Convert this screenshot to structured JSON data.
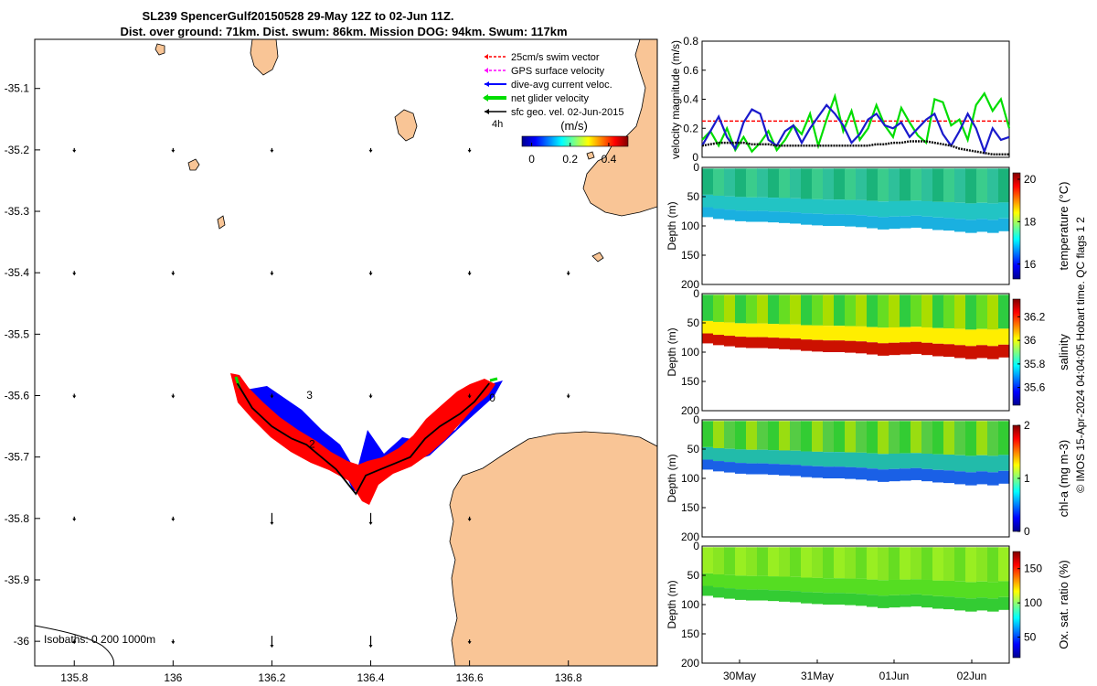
{
  "chart_data": [
    {
      "type": "map",
      "title_line1": "SL239 SpencerGulf20150528 29-May 12Z to 02-Jun 11Z.",
      "title_line2": "Dist. over ground: 71km. Dist. swum: 86km. Mission DOG: 94km. Swum: 117km",
      "xlim": [
        135.72,
        136.98
      ],
      "ylim": [
        -36.04,
        -35.02
      ],
      "xticks": [
        {
          "v": 135.8,
          "label": "135.8"
        },
        {
          "v": 136,
          "label": "136"
        },
        {
          "v": 136.2,
          "label": "136.2"
        },
        {
          "v": 136.4,
          "label": "136.4"
        },
        {
          "v": 136.6,
          "label": "136.6"
        },
        {
          "v": 136.8,
          "label": "136.8"
        }
      ],
      "yticks": [
        {
          "v": -35.1,
          "label": "-35.1"
        },
        {
          "v": -35.2,
          "label": "-35.2"
        },
        {
          "v": -35.3,
          "label": "-35.3"
        },
        {
          "v": -35.4,
          "label": "-35.4"
        },
        {
          "v": -35.5,
          "label": "-35.5"
        },
        {
          "v": -35.6,
          "label": "-35.6"
        },
        {
          "v": -35.7,
          "label": "-35.7"
        },
        {
          "v": -35.8,
          "label": "-35.8"
        },
        {
          "v": -35.9,
          "label": "-35.9"
        },
        {
          "v": -36,
          "label": "-36"
        }
      ],
      "legend": [
        {
          "label": "25cm/s swim vector",
          "color": "#ff0000",
          "style": "dash"
        },
        {
          "label": "GPS surface velocity",
          "color": "#ff00ff",
          "style": "dash"
        },
        {
          "label": "dive-avg current veloc.",
          "color": "#0000ff",
          "style": "solid"
        },
        {
          "label": "net glider velocity",
          "color": "#00dd00",
          "style": "thick"
        },
        {
          "label": "sfc geo. vel. 02-Jun-2015",
          "color": "#000000",
          "style": "solid"
        }
      ],
      "legend_extra": "4h",
      "colorbar": {
        "label": "(m/s)",
        "ticks": [
          "0",
          "0.2",
          "0.4"
        ],
        "range": [
          -0.05,
          0.5
        ]
      },
      "track": [
        [
          136.13,
          -35.58
        ],
        [
          136.16,
          -35.62
        ],
        [
          136.2,
          -35.65
        ],
        [
          136.24,
          -35.67
        ],
        [
          136.27,
          -35.68
        ],
        [
          136.3,
          -35.7
        ],
        [
          136.33,
          -35.72
        ],
        [
          136.35,
          -35.74
        ],
        [
          136.37,
          -35.76
        ],
        [
          136.39,
          -35.73
        ],
        [
          136.42,
          -35.72
        ],
        [
          136.45,
          -35.71
        ],
        [
          136.48,
          -35.7
        ],
        [
          136.51,
          -35.67
        ],
        [
          136.54,
          -35.65
        ],
        [
          136.58,
          -35.63
        ],
        [
          136.61,
          -35.61
        ],
        [
          136.64,
          -35.58
        ]
      ],
      "day_labels": [
        {
          "label": "3",
          "lon": 136.27,
          "lat": -35.605
        },
        {
          "label": "2",
          "lon": 136.275,
          "lat": -35.685
        },
        {
          "label": "0",
          "lon": 136.64,
          "lat": -35.61
        }
      ],
      "isobath_label": "Isobaths: 0  200  1000m"
    },
    {
      "type": "line",
      "ylabel": "velocity magnitude (m/s)",
      "ylim": [
        0,
        0.8
      ],
      "yticks": [
        "0",
        "0.2",
        "0.4",
        "0.6",
        "0.8"
      ],
      "reference_value": 0.25,
      "series": [
        {
          "name": "net glider velocity",
          "color": "#00dd00",
          "values": [
            0.12,
            0.18,
            0.08,
            0.2,
            0.05,
            0.14,
            0.04,
            0.1,
            0.18,
            0.05,
            0.12,
            0.22,
            0.16,
            0.3,
            0.08,
            0.26,
            0.42,
            0.18,
            0.32,
            0.12,
            0.2,
            0.36,
            0.22,
            0.14,
            0.34,
            0.24,
            0.15,
            0.1,
            0.4,
            0.38,
            0.22,
            0.26,
            0.12,
            0.36,
            0.44,
            0.32,
            0.4,
            0.2
          ]
        },
        {
          "name": "dive-avg current veloc.",
          "color": "#1a1acc",
          "values": [
            0.08,
            0.18,
            0.28,
            0.14,
            0.06,
            0.24,
            0.33,
            0.3,
            0.12,
            0.08,
            0.18,
            0.22,
            0.1,
            0.2,
            0.28,
            0.36,
            0.3,
            0.22,
            0.1,
            0.16,
            0.26,
            0.3,
            0.22,
            0.2,
            0.24,
            0.14,
            0.2,
            0.26,
            0.3,
            0.16,
            0.08,
            0.18,
            0.3,
            0.2,
            0.04,
            0.2,
            0.12,
            0.14
          ]
        },
        {
          "name": "sfc geo. vel.",
          "color": "#111111",
          "values": [
            0.08,
            0.09,
            0.1,
            0.1,
            0.1,
            0.1,
            0.09,
            0.09,
            0.09,
            0.08,
            0.08,
            0.08,
            0.08,
            0.08,
            0.08,
            0.08,
            0.08,
            0.08,
            0.08,
            0.08,
            0.08,
            0.09,
            0.09,
            0.1,
            0.1,
            0.11,
            0.11,
            0.11,
            0.1,
            0.09,
            0.08,
            0.06,
            0.05,
            0.04,
            0.03,
            0.02,
            0.02,
            0.02
          ]
        }
      ]
    },
    {
      "type": "heatmap",
      "ylabel": "Depth (m)",
      "clabel": "temperature (°C)",
      "yticks": [
        "0",
        "50",
        "100",
        "150",
        "200"
      ],
      "ctick_values": [
        16,
        18,
        20
      ],
      "ctick_labels": [
        "16",
        "18",
        "20"
      ],
      "crange": [
        15.3,
        20.3
      ],
      "bottom_depth": [
        85,
        88,
        90,
        92,
        93,
        93,
        94,
        95,
        96,
        98,
        99,
        100,
        100,
        101,
        102,
        104,
        106,
        105,
        104,
        103,
        105,
        107,
        108,
        110,
        112,
        110,
        112,
        109
      ]
    },
    {
      "type": "heatmap",
      "ylabel": "Depth (m)",
      "clabel": "salinity",
      "yticks": [
        "0",
        "50",
        "100",
        "150",
        "200"
      ],
      "ctick_values": [
        35.6,
        35.8,
        36,
        36.2
      ],
      "ctick_labels": [
        "35.6",
        "35.8",
        "36",
        "36.2"
      ],
      "crange": [
        35.45,
        36.35
      ],
      "bottom_depth": [
        85,
        88,
        90,
        92,
        93,
        93,
        94,
        95,
        96,
        98,
        99,
        100,
        100,
        101,
        102,
        104,
        106,
        105,
        104,
        103,
        105,
        107,
        108,
        110,
        112,
        110,
        112,
        109
      ]
    },
    {
      "type": "heatmap",
      "ylabel": "Depth (m)",
      "clabel": "chl-a (mg m-3)",
      "yticks": [
        "0",
        "50",
        "100",
        "150",
        "200"
      ],
      "ctick_values": [
        0,
        1,
        2
      ],
      "ctick_labels": [
        "0",
        "1",
        "2"
      ],
      "crange": [
        0,
        2
      ],
      "bottom_depth": [
        85,
        88,
        90,
        92,
        93,
        93,
        94,
        95,
        96,
        98,
        99,
        100,
        100,
        101,
        102,
        104,
        106,
        105,
        104,
        103,
        105,
        107,
        108,
        110,
        112,
        110,
        112,
        109
      ]
    },
    {
      "type": "heatmap",
      "ylabel": "Depth (m)",
      "clabel": "Ox. sat. ratio (%)",
      "yticks": [
        "0",
        "50",
        "100",
        "150",
        "200"
      ],
      "ctick_values": [
        50,
        100,
        150
      ],
      "ctick_labels": [
        "50",
        "100",
        "150"
      ],
      "crange": [
        20,
        175
      ],
      "bottom_depth": [
        85,
        88,
        90,
        92,
        93,
        93,
        94,
        95,
        96,
        98,
        99,
        100,
        100,
        101,
        102,
        104,
        106,
        105,
        104,
        103,
        105,
        107,
        108,
        110,
        112,
        110,
        112,
        109
      ],
      "xticks": [
        "30May",
        "31May",
        "01Jun",
        "02Jun"
      ]
    }
  ],
  "side_note": "© IMOS 15-Apr-2024 04:04:05 Hobart time. QC flags 1  2"
}
